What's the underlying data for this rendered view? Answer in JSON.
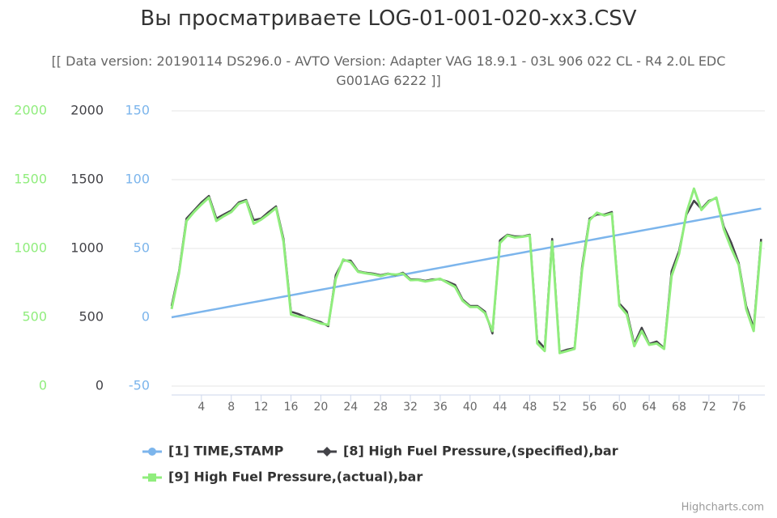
{
  "chart_data": {
    "type": "line",
    "title": "Вы просматриваете LOG-01-001-020-xx3.CSV",
    "subtitle": "[[ Data version: 20190114 DS296.0 - AVTO Version: Adapter VAG 18.9.1 - 03L 906 022 CL - R4 2.0L EDC G001AG 6222 ]]",
    "credits": "Highcharts.com",
    "x": [
      0,
      1,
      2,
      3,
      4,
      5,
      6,
      7,
      8,
      9,
      10,
      11,
      12,
      13,
      14,
      15,
      16,
      17,
      18,
      19,
      20,
      21,
      22,
      23,
      24,
      25,
      26,
      27,
      28,
      29,
      30,
      31,
      32,
      33,
      34,
      35,
      36,
      37,
      38,
      39,
      40,
      41,
      42,
      43,
      44,
      45,
      46,
      47,
      48,
      49,
      50,
      51,
      52,
      53,
      54,
      55,
      56,
      57,
      58,
      59,
      60,
      61,
      62,
      63,
      64,
      65,
      66,
      67,
      68,
      69,
      70,
      71,
      72,
      73,
      74,
      75,
      76,
      77,
      78,
      79
    ],
    "xlim": [
      0,
      79.5
    ],
    "xticks": [
      4,
      8,
      12,
      16,
      20,
      24,
      28,
      32,
      36,
      40,
      44,
      48,
      52,
      56,
      60,
      64,
      68,
      72,
      76
    ],
    "ylim": [
      0,
      2000
    ],
    "yticks": [
      0,
      500,
      1000,
      1500,
      2000
    ],
    "y2lim": [
      0,
      2000
    ],
    "y2ticks": [
      0,
      500,
      1000,
      1500,
      2000
    ],
    "y3lim": [
      -50,
      150
    ],
    "y3ticks": [
      -50,
      0,
      50,
      100,
      150
    ],
    "grid": true,
    "series": [
      {
        "name": "[1] TIME,STAMP",
        "color": "#7cb5ec",
        "axis": "y3",
        "marker": "circle",
        "values": [
          0,
          1,
          2,
          3,
          4,
          5,
          6,
          7,
          8,
          9,
          10,
          11,
          12,
          13,
          14,
          15,
          16,
          17,
          18,
          19,
          20,
          21,
          22,
          23,
          24,
          25,
          26,
          27,
          28,
          29,
          30,
          31,
          32,
          33,
          34,
          35,
          36,
          37,
          38,
          39,
          40,
          41,
          42,
          43,
          44,
          45,
          46,
          47,
          48,
          49,
          50,
          51,
          52,
          53,
          54,
          55,
          56,
          57,
          58,
          59,
          60,
          61,
          62,
          63,
          64,
          65,
          66,
          67,
          68,
          69,
          70,
          71,
          72,
          73,
          74,
          75,
          76,
          77,
          78,
          79
        ]
      },
      {
        "name": "[8] High Fuel Pressure,(specified),bar",
        "color": "#434348",
        "axis": "y2",
        "marker": "diamond",
        "values": [
          582,
          835,
          1218,
          1276,
          1335,
          1382,
          1218,
          1247,
          1276,
          1335,
          1353,
          1206,
          1218,
          1265,
          1306,
          1070,
          541,
          524,
          500,
          482,
          465,
          435,
          806,
          912,
          912,
          835,
          824,
          818,
          806,
          818,
          806,
          824,
          776,
          776,
          765,
          776,
          776,
          759,
          735,
          629,
          582,
          582,
          541,
          382,
          1059,
          1100,
          1088,
          1088,
          1100,
          335,
          276,
          1070,
          247,
          265,
          276,
          865,
          1218,
          1247,
          1247,
          1265,
          600,
          541,
          306,
          424,
          306,
          324,
          276,
          835,
          982,
          1247,
          1347,
          1288,
          1347,
          1365,
          1159,
          1041,
          894,
          582,
          424,
          1070
        ]
      },
      {
        "name": "[9] High Fuel Pressure,(actual),bar",
        "color": "#90ed7d",
        "axis": "y",
        "marker": "square",
        "values": [
          560,
          820,
          1200,
          1265,
          1320,
          1370,
          1200,
          1235,
          1265,
          1325,
          1345,
          1180,
          1210,
          1250,
          1295,
          1050,
          520,
          505,
          495,
          475,
          455,
          445,
          780,
          920,
          900,
          830,
          820,
          812,
          800,
          815,
          810,
          818,
          770,
          772,
          760,
          770,
          780,
          750,
          720,
          620,
          575,
          575,
          530,
          400,
          1040,
          1095,
          1080,
          1085,
          1095,
          310,
          255,
          1050,
          240,
          255,
          270,
          840,
          1205,
          1260,
          1240,
          1255,
          585,
          520,
          290,
          400,
          300,
          310,
          270,
          800,
          960,
          1260,
          1435,
          1280,
          1340,
          1370,
          1140,
          1000,
          880,
          560,
          400,
          1050
        ]
      }
    ]
  }
}
